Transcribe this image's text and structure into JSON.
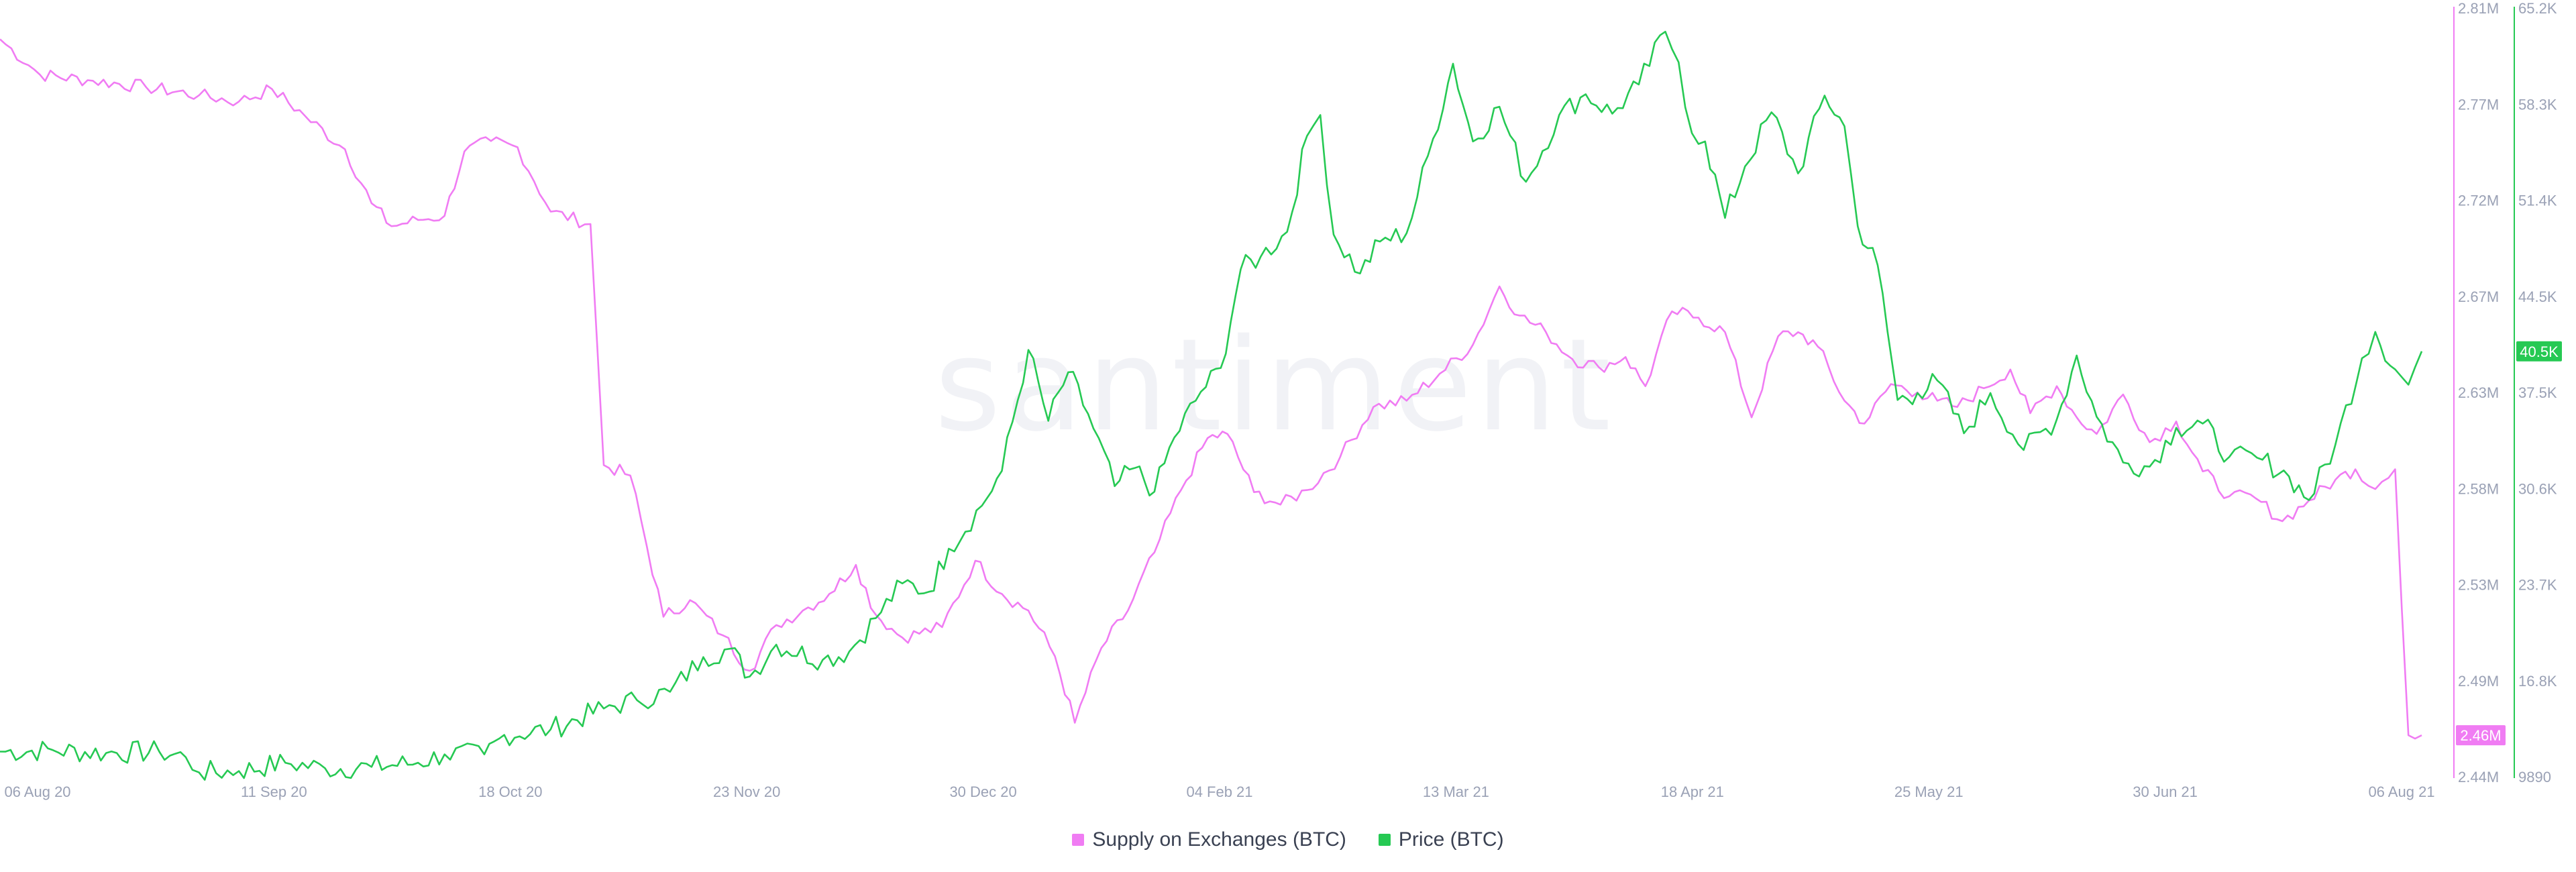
{
  "chart_data": {
    "type": "line",
    "watermark": "santiment",
    "x_labels": [
      "06 Aug 20",
      "11 Sep 20",
      "18 Oct 20",
      "23 Nov 20",
      "30 Dec 20",
      "04 Feb 21",
      "13 Mar 21",
      "18 Apr 21",
      "25 May 21",
      "30 Jun 21",
      "06 Aug 21"
    ],
    "x_range": [
      "2020-08-06",
      "2021-08-06"
    ],
    "axes": {
      "supply": {
        "ticks": [
          "2.81M",
          "2.77M",
          "2.72M",
          "2.67M",
          "2.63M",
          "2.58M",
          "2.53M",
          "2.49M",
          "2.44M"
        ],
        "min": 2440000,
        "max": 2810000,
        "color": "#f07cf3"
      },
      "price": {
        "ticks": [
          "65.2K",
          "58.3K",
          "51.4K",
          "44.5K",
          "37.5K",
          "30.6K",
          "23.7K",
          "16.8K",
          "9890"
        ],
        "min": 9890,
        "max": 65200,
        "color": "#26c953"
      }
    },
    "current": {
      "supply_label": "2.46M",
      "price_label": "40.5K"
    },
    "legend": [
      {
        "name": "Supply on Exchanges (BTC)",
        "color": "#f07cf3"
      },
      {
        "name": "Price (BTC)",
        "color": "#26c953"
      }
    ],
    "series": [
      {
        "name": "Supply on Exchanges (BTC)",
        "axis": "supply",
        "points": [
          [
            "2020-08-06",
            2795000
          ],
          [
            "2020-08-12",
            2778000
          ],
          [
            "2020-08-20",
            2775000
          ],
          [
            "2020-08-28",
            2772000
          ],
          [
            "2020-09-05",
            2768000
          ],
          [
            "2020-09-11",
            2765000
          ],
          [
            "2020-09-16",
            2771000
          ],
          [
            "2020-09-21",
            2758000
          ],
          [
            "2020-09-27",
            2742000
          ],
          [
            "2020-10-01",
            2716000
          ],
          [
            "2020-10-04",
            2705000
          ],
          [
            "2020-10-08",
            2708000
          ],
          [
            "2020-10-12",
            2710000
          ],
          [
            "2020-10-15",
            2741000
          ],
          [
            "2020-10-19",
            2746000
          ],
          [
            "2020-10-23",
            2743000
          ],
          [
            "2020-10-28",
            2712000
          ],
          [
            "2020-11-03",
            2706000
          ],
          [
            "2020-11-05",
            2590000
          ],
          [
            "2020-11-09",
            2585000
          ],
          [
            "2020-11-14",
            2517000
          ],
          [
            "2020-11-18",
            2525000
          ],
          [
            "2020-11-23",
            2508000
          ],
          [
            "2020-11-27",
            2491000
          ],
          [
            "2020-12-01",
            2513000
          ],
          [
            "2020-12-05",
            2520000
          ],
          [
            "2020-12-09",
            2528000
          ],
          [
            "2020-12-13",
            2542000
          ],
          [
            "2020-12-16",
            2518000
          ],
          [
            "2020-12-20",
            2507000
          ],
          [
            "2020-12-26",
            2512000
          ],
          [
            "2020-12-31",
            2544000
          ],
          [
            "2021-01-04",
            2528000
          ],
          [
            "2021-01-08",
            2520000
          ],
          [
            "2021-01-12",
            2498000
          ],
          [
            "2021-01-15",
            2466000
          ],
          [
            "2021-01-19",
            2502000
          ],
          [
            "2021-01-23",
            2520000
          ],
          [
            "2021-01-27",
            2548000
          ],
          [
            "2021-01-31",
            2578000
          ],
          [
            "2021-02-04",
            2603000
          ],
          [
            "2021-02-07",
            2605000
          ],
          [
            "2021-02-11",
            2577000
          ],
          [
            "2021-02-15",
            2571000
          ],
          [
            "2021-02-19",
            2578000
          ],
          [
            "2021-02-24",
            2594000
          ],
          [
            "2021-03-01",
            2618000
          ],
          [
            "2021-03-06",
            2621000
          ],
          [
            "2021-03-11",
            2634000
          ],
          [
            "2021-03-16",
            2648000
          ],
          [
            "2021-03-20",
            2676000
          ],
          [
            "2021-03-23",
            2662000
          ],
          [
            "2021-03-27",
            2654000
          ],
          [
            "2021-03-31",
            2641000
          ],
          [
            "2021-04-04",
            2637000
          ],
          [
            "2021-04-08",
            2642000
          ],
          [
            "2021-04-11",
            2628000
          ],
          [
            "2021-04-15",
            2664000
          ],
          [
            "2021-04-19",
            2661000
          ],
          [
            "2021-04-23",
            2654000
          ],
          [
            "2021-04-27",
            2613000
          ],
          [
            "2021-05-01",
            2652000
          ],
          [
            "2021-05-04",
            2654000
          ],
          [
            "2021-05-07",
            2647000
          ],
          [
            "2021-05-11",
            2621000
          ],
          [
            "2021-05-14",
            2610000
          ],
          [
            "2021-05-18",
            2629000
          ],
          [
            "2021-05-22",
            2625000
          ],
          [
            "2021-05-25",
            2621000
          ],
          [
            "2021-05-28",
            2618000
          ],
          [
            "2021-06-01",
            2627000
          ],
          [
            "2021-06-05",
            2636000
          ],
          [
            "2021-06-08",
            2615000
          ],
          [
            "2021-06-12",
            2628000
          ],
          [
            "2021-06-15",
            2613000
          ],
          [
            "2021-06-18",
            2605000
          ],
          [
            "2021-06-22",
            2624000
          ],
          [
            "2021-06-26",
            2601000
          ],
          [
            "2021-06-30",
            2611000
          ],
          [
            "2021-07-04",
            2587000
          ],
          [
            "2021-07-08",
            2575000
          ],
          [
            "2021-07-12",
            2574000
          ],
          [
            "2021-07-16",
            2563000
          ],
          [
            "2021-07-20",
            2573000
          ],
          [
            "2021-07-24",
            2583000
          ],
          [
            "2021-07-27",
            2588000
          ],
          [
            "2021-07-29",
            2580000
          ],
          [
            "2021-07-31",
            2582000
          ],
          [
            "2021-08-02",
            2588000
          ],
          [
            "2021-08-04",
            2460000
          ],
          [
            "2021-08-06",
            2460000
          ]
        ]
      },
      {
        "name": "Price (BTC)",
        "axis": "price",
        "points": [
          [
            "2020-08-06",
            11700
          ],
          [
            "2020-08-14",
            11800
          ],
          [
            "2020-08-22",
            11600
          ],
          [
            "2020-08-30",
            11700
          ],
          [
            "2020-09-03",
            11300
          ],
          [
            "2020-09-05",
            10200
          ],
          [
            "2020-09-11",
            10300
          ],
          [
            "2020-09-18",
            10900
          ],
          [
            "2020-09-24",
            10500
          ],
          [
            "2020-10-01",
            10600
          ],
          [
            "2020-10-08",
            10900
          ],
          [
            "2020-10-12",
            11500
          ],
          [
            "2020-10-18",
            11500
          ],
          [
            "2020-10-21",
            12900
          ],
          [
            "2020-10-28",
            13300
          ],
          [
            "2020-11-05",
            14800
          ],
          [
            "2020-11-10",
            15400
          ],
          [
            "2020-11-15",
            16000
          ],
          [
            "2020-11-20",
            18500
          ],
          [
            "2020-11-24",
            19100
          ],
          [
            "2020-11-27",
            17100
          ],
          [
            "2020-12-01",
            19400
          ],
          [
            "2020-12-08",
            18300
          ],
          [
            "2020-12-12",
            18900
          ],
          [
            "2020-12-16",
            21300
          ],
          [
            "2020-12-20",
            23800
          ],
          [
            "2020-12-24",
            23200
          ],
          [
            "2020-12-27",
            26300
          ],
          [
            "2021-01-01",
            29400
          ],
          [
            "2021-01-04",
            31900
          ],
          [
            "2021-01-08",
            40600
          ],
          [
            "2021-01-11",
            35500
          ],
          [
            "2021-01-14",
            39000
          ],
          [
            "2021-01-17",
            36000
          ],
          [
            "2021-01-21",
            30800
          ],
          [
            "2021-01-24",
            32100
          ],
          [
            "2021-01-27",
            30400
          ],
          [
            "2021-01-30",
            34300
          ],
          [
            "2021-02-03",
            37600
          ],
          [
            "2021-02-06",
            39300
          ],
          [
            "2021-02-09",
            46400
          ],
          [
            "2021-02-12",
            47300
          ],
          [
            "2021-02-16",
            49100
          ],
          [
            "2021-02-19",
            56000
          ],
          [
            "2021-02-21",
            57500
          ],
          [
            "2021-02-23",
            48900
          ],
          [
            "2021-02-27",
            46100
          ],
          [
            "2021-03-02",
            48400
          ],
          [
            "2021-03-06",
            49000
          ],
          [
            "2021-03-10",
            55800
          ],
          [
            "2021-03-13",
            61200
          ],
          [
            "2021-03-16",
            55600
          ],
          [
            "2021-03-20",
            58100
          ],
          [
            "2021-03-24",
            52700
          ],
          [
            "2021-03-29",
            57500
          ],
          [
            "2021-04-02",
            59000
          ],
          [
            "2021-04-06",
            57600
          ],
          [
            "2021-04-10",
            59700
          ],
          [
            "2021-04-14",
            63500
          ],
          [
            "2021-04-16",
            61300
          ],
          [
            "2021-04-18",
            56200
          ],
          [
            "2021-04-20",
            55600
          ],
          [
            "2021-04-23",
            50100
          ],
          [
            "2021-04-26",
            53800
          ],
          [
            "2021-04-30",
            57700
          ],
          [
            "2021-05-04",
            53300
          ],
          [
            "2021-05-08",
            58900
          ],
          [
            "2021-05-11",
            56700
          ],
          [
            "2021-05-13",
            49500
          ],
          [
            "2021-05-16",
            46700
          ],
          [
            "2021-05-19",
            37000
          ],
          [
            "2021-05-22",
            37500
          ],
          [
            "2021-05-25",
            38400
          ],
          [
            "2021-05-29",
            34600
          ],
          [
            "2021-06-02",
            37500
          ],
          [
            "2021-06-07",
            33400
          ],
          [
            "2021-06-12",
            35600
          ],
          [
            "2021-06-15",
            40200
          ],
          [
            "2021-06-18",
            35800
          ],
          [
            "2021-06-22",
            32500
          ],
          [
            "2021-06-26",
            32200
          ],
          [
            "2021-06-30",
            35000
          ],
          [
            "2021-07-04",
            35300
          ],
          [
            "2021-07-08",
            32900
          ],
          [
            "2021-07-13",
            32700
          ],
          [
            "2021-07-17",
            31500
          ],
          [
            "2021-07-20",
            29800
          ],
          [
            "2021-07-24",
            33800
          ],
          [
            "2021-07-28",
            40000
          ],
          [
            "2021-07-30",
            41900
          ],
          [
            "2021-08-02",
            39200
          ],
          [
            "2021-08-04",
            38100
          ],
          [
            "2021-08-06",
            40500
          ]
        ]
      }
    ]
  }
}
